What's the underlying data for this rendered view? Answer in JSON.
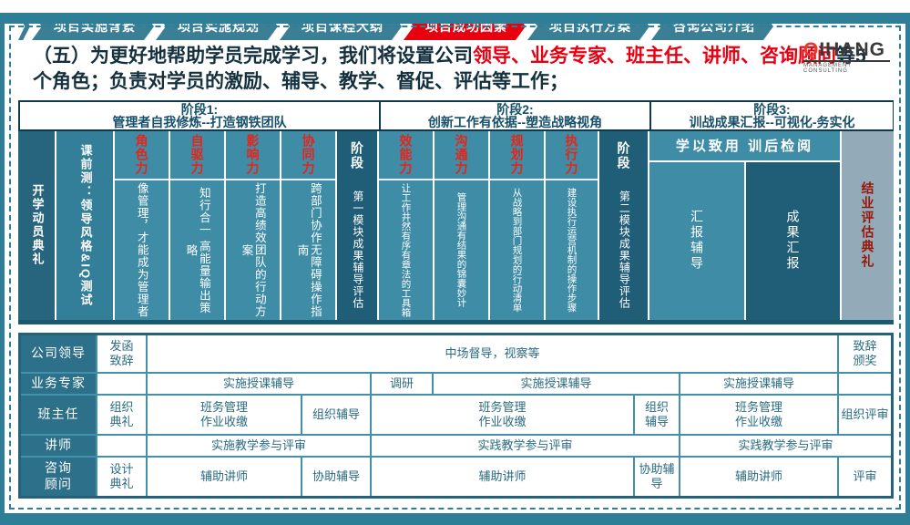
{
  "colors": {
    "frame_teal": "#2e7e97",
    "tab_teal": "#3b7f96",
    "tab_active_red": "#e8000f",
    "column_teal": "#3f8ca6",
    "column_dark_teal": "#205e78",
    "grad_gray": "#93abb8",
    "highlight_red": "#e60012",
    "maroon_text": "#991409"
  },
  "nav": {
    "tabs": [
      {
        "label": "项目实施背景",
        "active": false
      },
      {
        "label": "项目实施规划",
        "active": false
      },
      {
        "label": "项目课程大纲",
        "active": false
      },
      {
        "label": "项目成功因素",
        "active": true
      },
      {
        "label": "项目执行方案",
        "active": false
      },
      {
        "label": "咨询公司介绍",
        "active": false
      }
    ]
  },
  "logo": {
    "q": "Q",
    "rest": "IHANG",
    "sub": "MANAGEMENT CONSULTING"
  },
  "intro": {
    "part1": "（五）为更好地帮助学员完成学习，我们将设置公司",
    "highlight": "领导、业务专家、班主任、讲师、咨询顾问",
    "part2": "等5个角色；负责对学员的激励、辅导、教学、督促、评估等工作；"
  },
  "matrix": {
    "stage_headers": [
      {
        "line1": "阶段1:",
        "line2": "管理者自我修炼--打造钢铁团队"
      },
      {
        "line1": "阶段2:",
        "line2": "创新工作有依据--塑造战略视角"
      },
      {
        "line1": "阶段3:",
        "line2": "训战成果汇报--可视化-务实化"
      }
    ],
    "opening_col": "开学动员典礼",
    "pretest_col": "课前测：领导风格&IQ测试",
    "skill_cols": [
      {
        "head": "角色力",
        "body": "像管理，才能成为管理者"
      },
      {
        "head": "自驱力",
        "body": "知行合一 高能量输出策略"
      },
      {
        "head": "影响力",
        "body": "打造高绩效团队的行动方案"
      },
      {
        "head": "协同力",
        "body": "跨部门协作无障碍操作指南"
      }
    ],
    "phase1_col": {
      "head": "阶段",
      "body": "第一模块成果辅导评估"
    },
    "skill_cols2": [
      {
        "head": "效能力",
        "body": "让工作井然有序有章法的工具箱"
      },
      {
        "head": "沟通力",
        "body": "管理沟通有结果的锦囊妙计"
      },
      {
        "head": "规划力",
        "body": "从战略到部门规划的行动清单"
      },
      {
        "head": "执行力",
        "body": "建设执行运营机制的操作步骤"
      }
    ],
    "phase2_col": {
      "head": "阶段",
      "body": "第二模块成果辅导评估"
    },
    "stage3": {
      "banner": "学以致用 训后检阅",
      "coach_col": "汇报辅导",
      "report_col": "成果汇报",
      "grad_col": "结业评估典礼"
    }
  },
  "roles": {
    "rows": [
      {
        "label": "公司领导",
        "cells": [
          "发函\n致辞",
          "中场督导，视察等",
          "致辞\n颁奖"
        ]
      },
      {
        "label": "业务专家",
        "cells": [
          "实施授课辅导",
          "调研",
          "实施授课辅导",
          "实施授课辅导"
        ]
      },
      {
        "label": "班主任",
        "cells": [
          "组织\n典礼",
          "班务管理\n作业收缴",
          "组织辅导",
          "班务管理\n作业收缴",
          "组织\n辅导",
          "班务管理\n作业收缴",
          "组织评审"
        ]
      },
      {
        "label": "讲师",
        "cells": [
          "实施教学参与评审",
          "实践教学参与评审",
          "实践教学参与评审"
        ]
      },
      {
        "label": "咨询顾问",
        "label_display": "咨询\n顾问",
        "cells": [
          "设计\n典礼",
          "辅助讲师",
          "协助辅导",
          "辅助讲师",
          "协助辅导",
          "辅助讲师",
          "评审"
        ]
      }
    ]
  }
}
